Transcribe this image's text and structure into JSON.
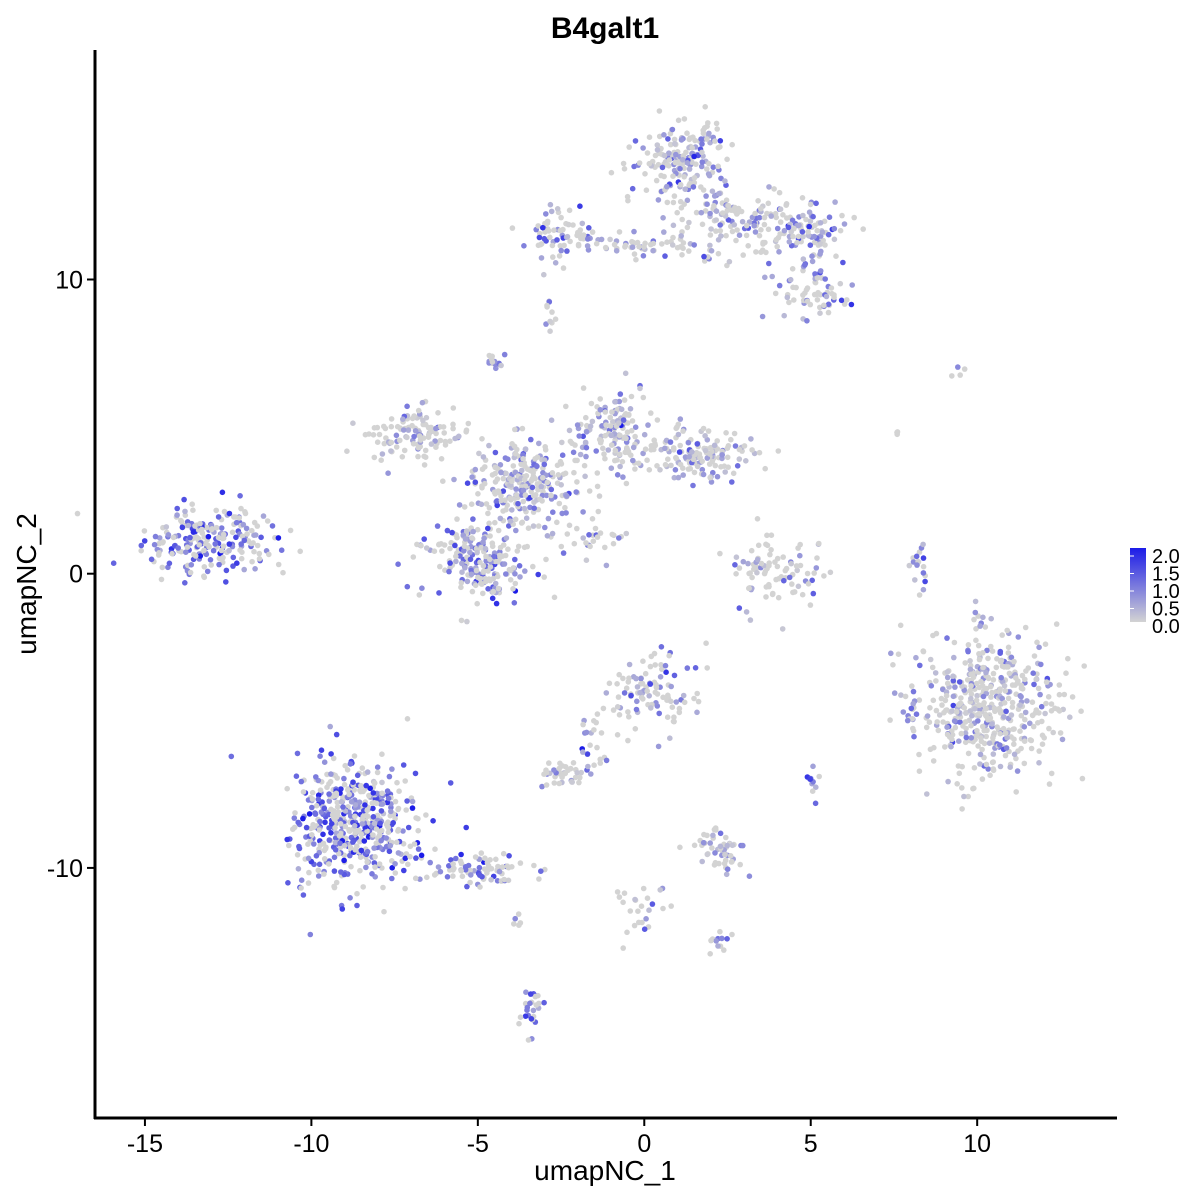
{
  "chart_data": {
    "type": "scatter",
    "title": "B4galt1",
    "xlabel": "umapNC_1",
    "ylabel": "umapNC_2",
    "xlim": [
      -16.5,
      14.2
    ],
    "ylim": [
      -18.5,
      17.8
    ],
    "x_ticks": [
      "-15",
      "-10",
      "-5",
      "0",
      "5",
      "10"
    ],
    "y_ticks": [
      "10",
      "0",
      "-10"
    ],
    "color_scale": {
      "low_color": "#d3d3d3",
      "high_color": "#1c1ce8",
      "min": 0.0,
      "max": 2.0,
      "labels": [
        "2.0",
        "1.5",
        "1.0",
        "0.5",
        "0.0"
      ]
    },
    "grid": false,
    "legend_position": "right",
    "clusters": [
      {
        "cx": -13.0,
        "cy": 1.2,
        "sx": 1.2,
        "sy": 0.75,
        "n": 230,
        "mean_expr": 0.95
      },
      {
        "cx": -8.7,
        "cy": -8.5,
        "sx": 1.2,
        "sy": 1.3,
        "n": 520,
        "mean_expr": 1.05
      },
      {
        "cx": -5.2,
        "cy": -10.0,
        "sx": 1.2,
        "sy": 0.35,
        "n": 90,
        "mean_expr": 1.0
      },
      {
        "cx": -6.8,
        "cy": 4.7,
        "sx": 1.0,
        "sy": 0.6,
        "n": 120,
        "mean_expr": 0.25
      },
      {
        "cx": -5.0,
        "cy": 0.5,
        "sx": 1.0,
        "sy": 0.9,
        "n": 220,
        "mean_expr": 0.8
      },
      {
        "cx": -3.5,
        "cy": 3.0,
        "sx": 1.1,
        "sy": 1.0,
        "n": 260,
        "mean_expr": 0.6
      },
      {
        "cx": -1.0,
        "cy": 4.8,
        "sx": 0.8,
        "sy": 0.9,
        "n": 150,
        "mean_expr": 0.35
      },
      {
        "cx": 1.6,
        "cy": 4.1,
        "sx": 1.0,
        "sy": 0.5,
        "n": 150,
        "mean_expr": 0.3
      },
      {
        "cx": -4.5,
        "cy": 7.2,
        "sx": 0.15,
        "sy": 0.25,
        "n": 15,
        "mean_expr": 0.6
      },
      {
        "cx": -1.5,
        "cy": 1.2,
        "sx": 0.5,
        "sy": 0.4,
        "n": 25,
        "mean_expr": 0.5
      },
      {
        "cx": 1.2,
        "cy": 14.0,
        "sx": 0.8,
        "sy": 1.0,
        "n": 200,
        "mean_expr": 0.4
      },
      {
        "cx": 2.8,
        "cy": 12.0,
        "sx": 1.2,
        "sy": 0.8,
        "n": 120,
        "mean_expr": 0.45
      },
      {
        "cx": -2.5,
        "cy": 11.5,
        "sx": 0.6,
        "sy": 0.5,
        "n": 70,
        "mean_expr": 0.7
      },
      {
        "cx": 0.0,
        "cy": 11.2,
        "sx": 1.3,
        "sy": 0.2,
        "n": 50,
        "mean_expr": 0.4
      },
      {
        "cx": 4.9,
        "cy": 11.6,
        "sx": 0.8,
        "sy": 0.6,
        "n": 90,
        "mean_expr": 0.65
      },
      {
        "cx": 5.0,
        "cy": 9.6,
        "sx": 0.8,
        "sy": 0.6,
        "n": 70,
        "mean_expr": 0.7
      },
      {
        "cx": -2.8,
        "cy": 8.8,
        "sx": 0.15,
        "sy": 0.3,
        "n": 10,
        "mean_expr": 0.6
      },
      {
        "cx": 3.9,
        "cy": 0.0,
        "sx": 0.9,
        "sy": 0.8,
        "n": 90,
        "mean_expr": 0.3
      },
      {
        "cx": 0.3,
        "cy": -4.0,
        "sx": 0.8,
        "sy": 0.8,
        "n": 100,
        "mean_expr": 0.6
      },
      {
        "cx": -1.6,
        "cy": -5.8,
        "sx": 0.3,
        "sy": 0.8,
        "n": 25,
        "mean_expr": 0.5
      },
      {
        "cx": -2.5,
        "cy": -6.8,
        "sx": 0.4,
        "sy": 0.3,
        "n": 35,
        "mean_expr": 0.15
      },
      {
        "cx": 2.3,
        "cy": -9.4,
        "sx": 0.5,
        "sy": 0.5,
        "n": 55,
        "mean_expr": 0.35
      },
      {
        "cx": 0.0,
        "cy": -11.3,
        "sx": 0.6,
        "sy": 0.8,
        "n": 25,
        "mean_expr": 0.4
      },
      {
        "cx": 2.3,
        "cy": -12.5,
        "sx": 0.3,
        "sy": 0.2,
        "n": 12,
        "mean_expr": 0.8
      },
      {
        "cx": -3.4,
        "cy": -15.0,
        "sx": 0.2,
        "sy": 0.7,
        "n": 25,
        "mean_expr": 1.0
      },
      {
        "cx": -3.8,
        "cy": -11.8,
        "sx": 0.1,
        "sy": 0.2,
        "n": 5,
        "mean_expr": 0.5
      },
      {
        "cx": 5.1,
        "cy": -7.2,
        "sx": 0.15,
        "sy": 0.3,
        "n": 10,
        "mean_expr": 1.0
      },
      {
        "cx": 10.3,
        "cy": -4.5,
        "sx": 1.3,
        "sy": 1.6,
        "n": 480,
        "mean_expr": 0.3
      },
      {
        "cx": 8.3,
        "cy": 0.4,
        "sx": 0.2,
        "sy": 0.5,
        "n": 18,
        "mean_expr": 0.6
      },
      {
        "cx": 8.0,
        "cy": -4.8,
        "sx": 0.2,
        "sy": 0.5,
        "n": 15,
        "mean_expr": 0.6
      },
      {
        "cx": 7.6,
        "cy": 4.8,
        "sx": 0.1,
        "sy": 0.2,
        "n": 3,
        "mean_expr": 0.1
      },
      {
        "cx": 9.5,
        "cy": 6.8,
        "sx": 0.3,
        "sy": 0.2,
        "n": 4,
        "mean_expr": 0.3
      }
    ]
  }
}
